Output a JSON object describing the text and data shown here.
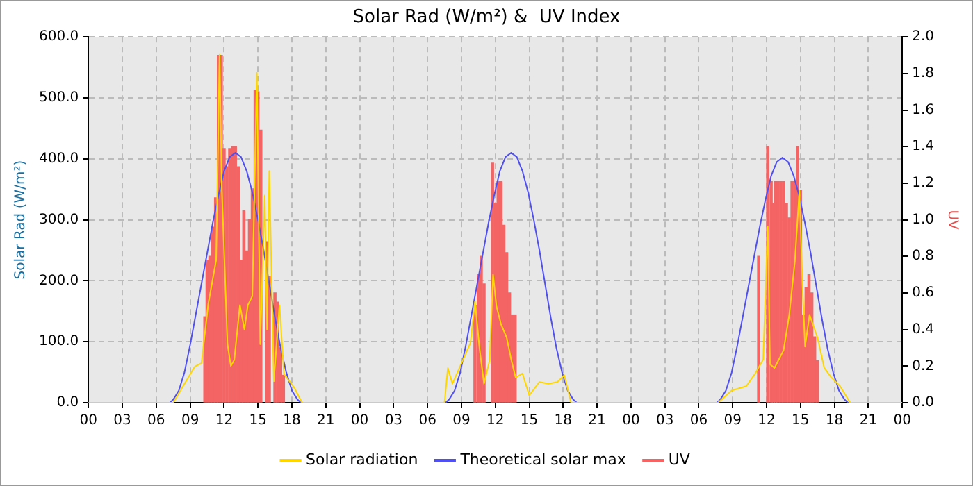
{
  "chart_data": {
    "type": "line",
    "title": "Solar Rad (W/m²) &  UV Index",
    "ylabel": "Solar Rad (W/m²)",
    "y2label": "UV",
    "xlim": [
      0,
      72
    ],
    "xticks": [
      {
        "value": 0,
        "label": "00"
      },
      {
        "value": 3,
        "label": "03"
      },
      {
        "value": 6,
        "label": "06"
      },
      {
        "value": 9,
        "label": "09"
      },
      {
        "value": 12,
        "label": "12"
      },
      {
        "value": 15,
        "label": "15"
      },
      {
        "value": 18,
        "label": "18"
      },
      {
        "value": 21,
        "label": "21"
      },
      {
        "value": 24,
        "label": "00"
      },
      {
        "value": 27,
        "label": "03"
      },
      {
        "value": 30,
        "label": "06"
      },
      {
        "value": 33,
        "label": "09"
      },
      {
        "value": 36,
        "label": "12"
      },
      {
        "value": 39,
        "label": "15"
      },
      {
        "value": 42,
        "label": "18"
      },
      {
        "value": 45,
        "label": "21"
      },
      {
        "value": 48,
        "label": "00"
      },
      {
        "value": 51,
        "label": "03"
      },
      {
        "value": 54,
        "label": "06"
      },
      {
        "value": 57,
        "label": "09"
      },
      {
        "value": 60,
        "label": "12"
      },
      {
        "value": 63,
        "label": "15"
      },
      {
        "value": 66,
        "label": "18"
      },
      {
        "value": 69,
        "label": "21"
      },
      {
        "value": 72,
        "label": "00"
      }
    ],
    "ylim": [
      0,
      600
    ],
    "yticks": [
      {
        "value": 0,
        "label": "0.0"
      },
      {
        "value": 100,
        "label": "100.0"
      },
      {
        "value": 200,
        "label": "200.0"
      },
      {
        "value": 300,
        "label": "300.0"
      },
      {
        "value": 400,
        "label": "400.0"
      },
      {
        "value": 500,
        "label": "500.0"
      },
      {
        "value": 600,
        "label": "600.0"
      }
    ],
    "y2lim": [
      0,
      2
    ],
    "y2ticks": [
      {
        "value": 0,
        "label": "0.0"
      },
      {
        "value": 0.2,
        "label": "0.2"
      },
      {
        "value": 0.4,
        "label": "0.4"
      },
      {
        "value": 0.6,
        "label": "0.6"
      },
      {
        "value": 0.8,
        "label": "0.8"
      },
      {
        "value": 1,
        "label": "1.0"
      },
      {
        "value": 1.2,
        "label": "1.2"
      },
      {
        "value": 1.4,
        "label": "1.4"
      },
      {
        "value": 1.6,
        "label": "1.6"
      },
      {
        "value": 1.8,
        "label": "1.8"
      },
      {
        "value": 2,
        "label": "2.0"
      }
    ],
    "grid": true,
    "legend": "bottom",
    "marker": "none",
    "series": [
      {
        "name": "Solar radiation",
        "type": "line",
        "color": "#ffd700",
        "x": [
          0,
          7.5,
          9.4,
          10,
          10.6,
          11.3,
          11.6,
          11.8,
          12.3,
          12.6,
          12.9,
          13.4,
          13.8,
          14.1,
          14.5,
          14.9,
          15.2,
          15.6,
          15.8,
          16,
          16.4,
          16.9,
          17.3,
          18.2,
          18.9,
          31.5,
          31.8,
          32.2,
          33.8,
          34.2,
          34.6,
          35,
          35.5,
          35.8,
          36.1,
          36.5,
          37,
          37.4,
          37.8,
          38.4,
          39,
          39.9,
          40.7,
          41.5,
          42.1,
          42.7,
          55.7,
          56.9,
          58.2,
          59,
          59.7,
          60.1,
          60.3,
          60.7,
          61.5,
          62,
          62.5,
          62.9,
          63.2,
          63.4,
          63.8,
          64.5,
          65.1,
          65.7,
          66.5,
          67.4,
          72
        ],
        "values": [
          0,
          0,
          59,
          65,
          162,
          234,
          571,
          350,
          96,
          60,
          70,
          160,
          120,
          160,
          175,
          541,
          96,
          340,
          120,
          380,
          35,
          160,
          47,
          25,
          0,
          0,
          57,
          31,
          98,
          166,
          89,
          31,
          70,
          210,
          158,
          129,
          107,
          71,
          41,
          48,
          12,
          34,
          31,
          34,
          45,
          0,
          0,
          20,
          27,
          48,
          71,
          289,
          63,
          57,
          86,
          144,
          232,
          348,
          180,
          92,
          144,
          107,
          57,
          42,
          27,
          0,
          0
        ]
      },
      {
        "name": "Theoretical solar max",
        "type": "line",
        "color": "#5050f0",
        "x": [
          0,
          7.2,
          7.5,
          8,
          8.5,
          9,
          9.5,
          10,
          10.5,
          11,
          11.5,
          12,
          12.5,
          13,
          13.5,
          14,
          14.5,
          15,
          15.5,
          16,
          16.5,
          17,
          17.5,
          18,
          18.5,
          18.8,
          31.6,
          31.9,
          32.4,
          32.9,
          33.4,
          33.9,
          34.4,
          34.9,
          35.4,
          35.9,
          36.4,
          36.9,
          37.4,
          37.9,
          38.4,
          38.9,
          39.4,
          39.9,
          40.4,
          40.9,
          41.4,
          41.9,
          42.4,
          42.9,
          43.2,
          55.6,
          55.9,
          56.4,
          56.9,
          57.4,
          57.9,
          58.4,
          58.9,
          59.4,
          59.9,
          60.4,
          60.9,
          61.4,
          61.9,
          62.4,
          62.9,
          63.4,
          63.9,
          64.4,
          64.9,
          65.4,
          65.9,
          66.4,
          66.9,
          67.2,
          72
        ],
        "values": [
          0,
          0,
          5,
          20,
          50,
          95,
          145,
          195,
          245,
          295,
          340,
          380,
          403,
          410,
          403,
          380,
          345,
          300,
          250,
          195,
          140,
          90,
          50,
          20,
          5,
          0,
          0,
          5,
          20,
          50,
          95,
          145,
          195,
          245,
          295,
          340,
          380,
          403,
          410,
          403,
          380,
          345,
          300,
          250,
          195,
          140,
          90,
          50,
          20,
          5,
          0,
          0,
          5,
          20,
          49,
          93,
          142,
          191,
          240,
          289,
          333,
          372,
          395,
          402,
          395,
          372,
          338,
          294,
          245,
          191,
          137,
          88,
          49,
          20,
          5,
          0,
          0
        ]
      },
      {
        "name": "UV",
        "type": "bar",
        "axis": "y2",
        "color": "#f46464",
        "x": [
          10.3,
          10.5,
          10.75,
          11,
          11.25,
          11.5,
          11.75,
          12,
          12.25,
          12.5,
          12.75,
          13,
          13.25,
          13.5,
          13.75,
          14,
          14.25,
          14.5,
          14.75,
          15,
          15.25,
          15.75,
          16,
          16.5,
          16.75,
          17,
          17.25,
          34.2,
          34.5,
          34.75,
          35,
          35.75,
          36,
          36.25,
          36.5,
          36.75,
          37,
          37.25,
          37.5,
          37.75,
          59.3,
          60.1,
          60.4,
          60.6,
          60.8,
          61,
          61.25,
          61.5,
          61.75,
          62,
          62.25,
          62.5,
          62.75,
          63,
          63.25,
          63.5,
          63.75,
          64,
          64.25,
          64.5
        ],
        "values": [
          0.47,
          0.78,
          0.8,
          0.96,
          1.12,
          1.9,
          1.9,
          1.39,
          1.29,
          1.39,
          1.4,
          1.4,
          1.29,
          0.78,
          1.05,
          0.83,
          1,
          1.17,
          1.71,
          1.7,
          1.49,
          0.88,
          0.69,
          0.6,
          0.55,
          0.3,
          0.15,
          0.53,
          0.7,
          0.8,
          0.65,
          1.31,
          1.09,
          1.21,
          1.21,
          0.97,
          0.82,
          0.6,
          0.48,
          0.48,
          0.8,
          1.4,
          1.21,
          1.09,
          1.21,
          1.21,
          1.21,
          1.21,
          1.09,
          1.01,
          1.21,
          1.21,
          1.4,
          1.16,
          0.48,
          0.63,
          0.7,
          0.6,
          0.36,
          0.23
        ]
      }
    ]
  }
}
